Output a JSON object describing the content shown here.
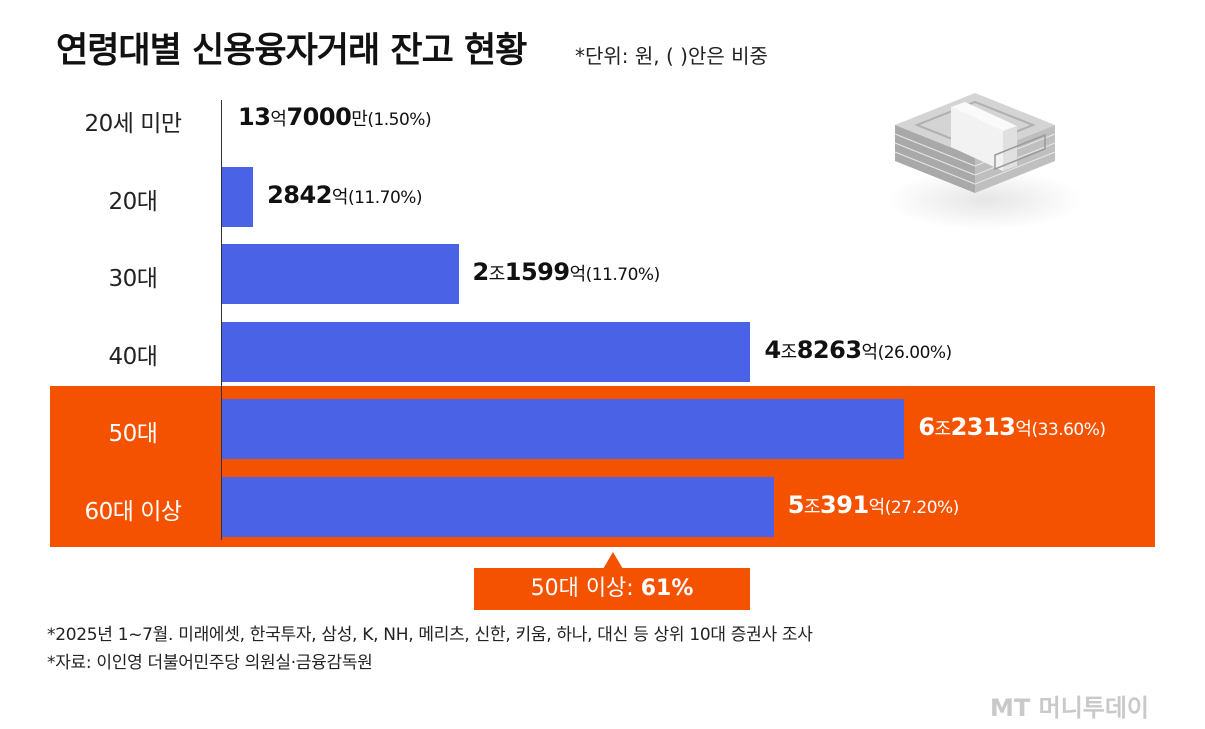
{
  "chart_data": {
    "type": "bar",
    "orientation": "horizontal",
    "title": "연령대별 신용융자거래 잔고 현황",
    "subtitle": "*단위: 원, ( )안은 비중",
    "unit": "억원",
    "categories": [
      "20세 미만",
      "20대",
      "30대",
      "40대",
      "50대",
      "60대 이상"
    ],
    "values": [
      13.7,
      2842,
      21599,
      48263,
      62313,
      50391
    ],
    "shares": [
      1.5,
      11.7,
      11.7,
      26.0,
      33.6,
      27.2
    ],
    "data_labels": [
      {
        "big1": "13",
        "small1": "억",
        "big2": "7000",
        "small2": "만",
        "pct": "(1.50%)"
      },
      {
        "big1": "",
        "small1": "",
        "big2": "2842",
        "small2": "억",
        "pct": "(11.70%)"
      },
      {
        "big1": "2",
        "small1": "조",
        "big2": "1599",
        "small2": "억",
        "pct": "(11.70%)"
      },
      {
        "big1": "4",
        "small1": "조",
        "big2": "8263",
        "small2": "억",
        "pct": "(26.00%)"
      },
      {
        "big1": "6",
        "small1": "조",
        "big2": "2313",
        "small2": "억",
        "pct": "(33.60%)"
      },
      {
        "big1": "5",
        "small1": "조",
        "big2": "391",
        "small2": "억",
        "pct": "(27.20%)"
      }
    ],
    "highlighted": [
      "50대",
      "60대 이상"
    ],
    "xlim": [
      0,
      70000
    ],
    "grid": false,
    "legend": "none",
    "colors": {
      "bar": "#4a63e6",
      "highlight": "#f55200"
    },
    "callout": {
      "prefix": "50대 이상: ",
      "value": "61%"
    }
  },
  "notes": [
    "*2025년 1~7월. 미래에셋, 한국투자, 삼성, K, NH, 메리츠, 신한, 키움, 하나, 대신 등 상위 10대 증권사 조사",
    "*자료: 이인영 더불어민주당 의원실·금융감독원"
  ],
  "logo": "MT 머니투데이",
  "illustration": "cash-stack-icon"
}
